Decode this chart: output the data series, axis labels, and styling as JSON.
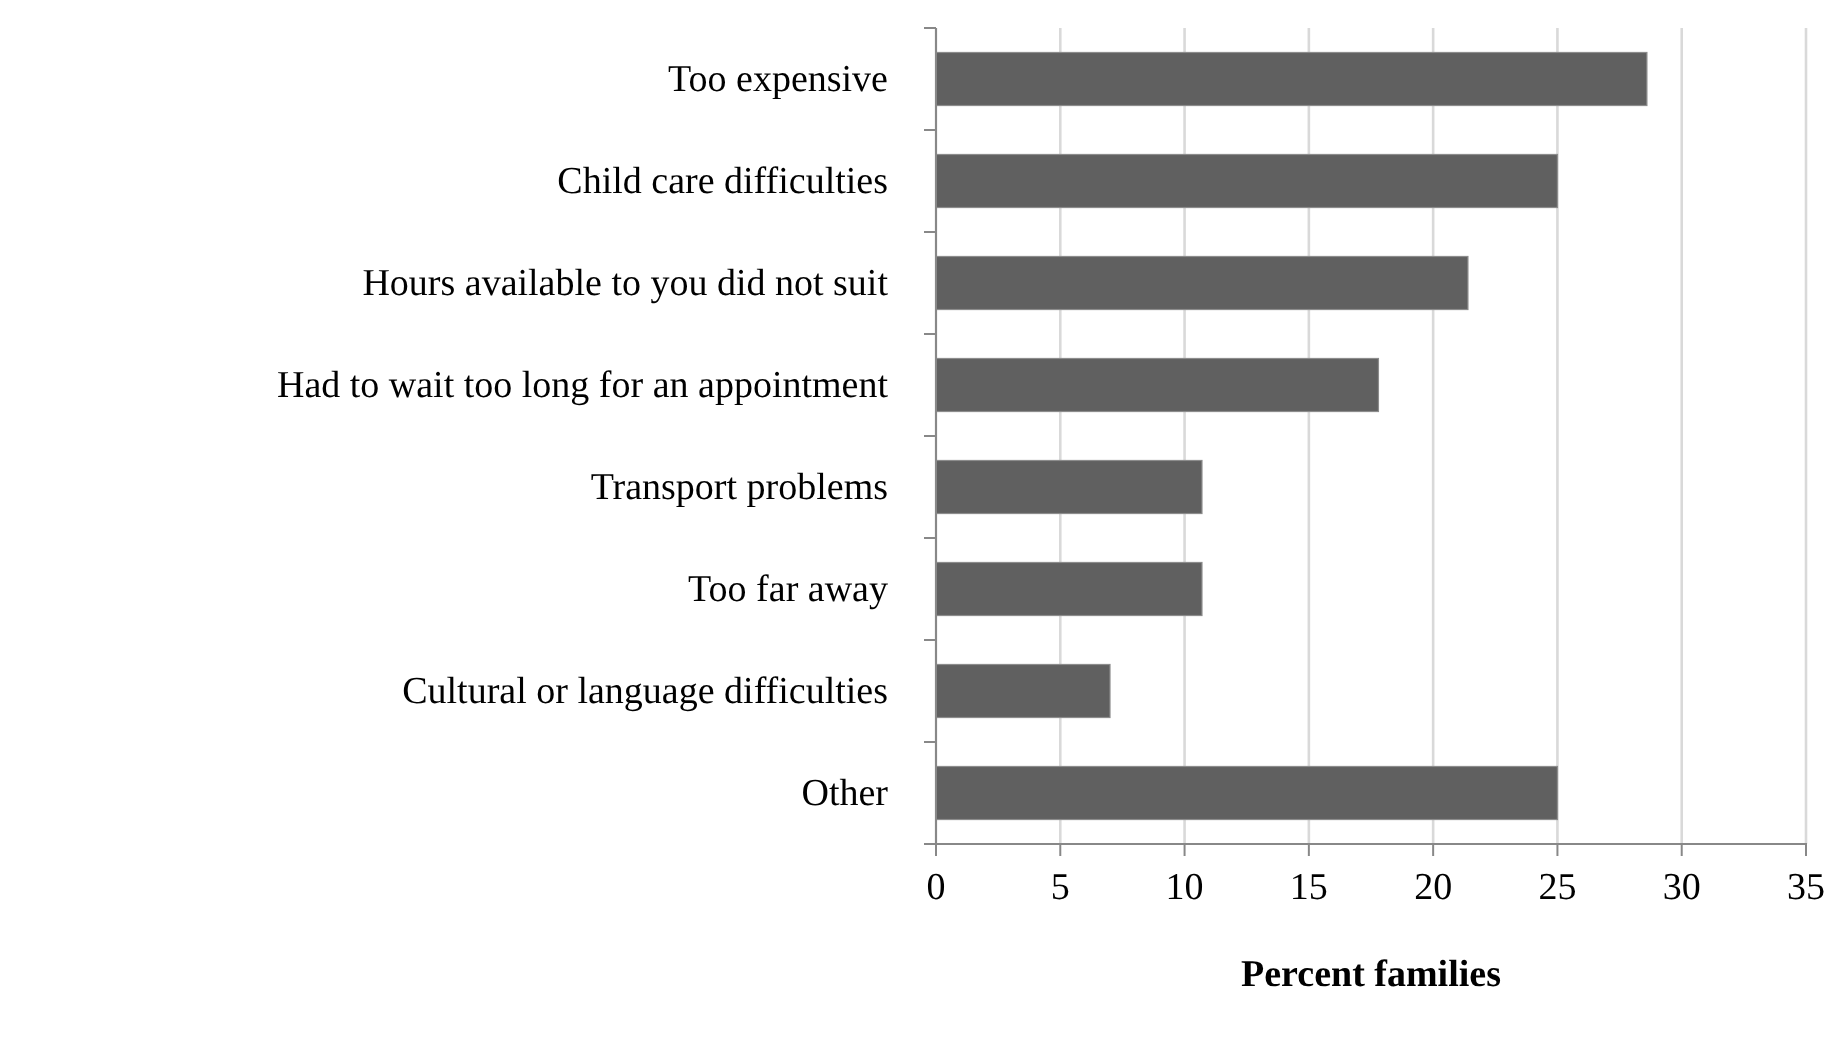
{
  "chart_data": {
    "type": "bar",
    "orientation": "horizontal",
    "xlabel": "Percent families",
    "categories": [
      "Too expensive",
      "Child care difficulties",
      "Hours available to you did not suit",
      "Had to wait too long for an appointment",
      "Transport problems",
      "Too far away",
      "Cultural or language difficulties",
      "Other"
    ],
    "values": [
      28.6,
      25.0,
      21.4,
      17.8,
      10.7,
      10.7,
      7.0,
      25.0
    ],
    "color": "#606060",
    "xlim": [
      0,
      35
    ],
    "xticks": [
      0,
      5,
      10,
      15,
      20,
      25,
      30,
      35
    ],
    "grid": "x"
  }
}
